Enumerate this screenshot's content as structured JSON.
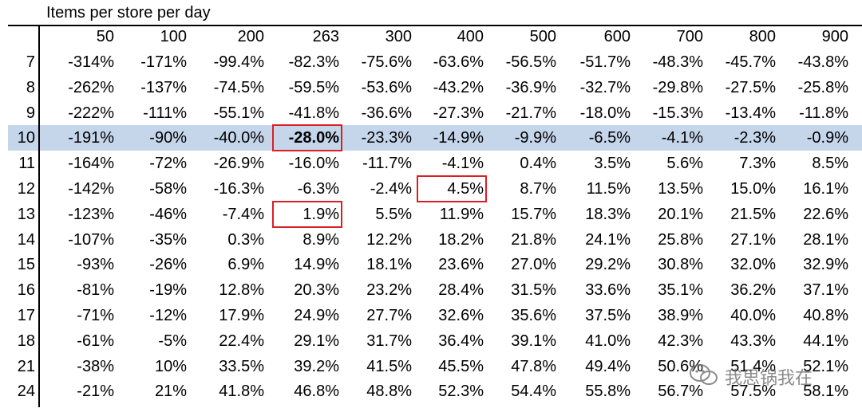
{
  "chart_data": {
    "type": "table",
    "title": "Items per store per day",
    "columns": [
      "50",
      "100",
      "200",
      "263",
      "300",
      "400",
      "500",
      "600",
      "700",
      "800",
      "900"
    ],
    "rows": [
      {
        "label": "7",
        "values": [
          "-314%",
          "-171%",
          "-99.4%",
          "-82.3%",
          "-75.6%",
          "-63.6%",
          "-56.5%",
          "-51.7%",
          "-48.3%",
          "-45.7%",
          "-43.8%"
        ]
      },
      {
        "label": "8",
        "values": [
          "-262%",
          "-137%",
          "-74.5%",
          "-59.5%",
          "-53.6%",
          "-43.2%",
          "-36.9%",
          "-32.7%",
          "-29.8%",
          "-27.5%",
          "-25.8%"
        ]
      },
      {
        "label": "9",
        "values": [
          "-222%",
          "-111%",
          "-55.1%",
          "-41.8%",
          "-36.6%",
          "-27.3%",
          "-21.7%",
          "-18.0%",
          "-15.3%",
          "-13.4%",
          "-11.8%"
        ]
      },
      {
        "label": "10",
        "values": [
          "-191%",
          "-90%",
          "-40.0%",
          "-28.0%",
          "-23.3%",
          "-14.9%",
          "-9.9%",
          "-6.5%",
          "-4.1%",
          "-2.3%",
          "-0.9%"
        ]
      },
      {
        "label": "11",
        "values": [
          "-164%",
          "-72%",
          "-26.9%",
          "-16.0%",
          "-11.7%",
          "-4.1%",
          "0.4%",
          "3.5%",
          "5.6%",
          "7.3%",
          "8.5%"
        ]
      },
      {
        "label": "12",
        "values": [
          "-142%",
          "-58%",
          "-16.3%",
          "-6.3%",
          "-2.4%",
          "4.5%",
          "8.7%",
          "11.5%",
          "13.5%",
          "15.0%",
          "16.1%"
        ]
      },
      {
        "label": "13",
        "values": [
          "-123%",
          "-46%",
          "-7.4%",
          "1.9%",
          "5.5%",
          "11.9%",
          "15.7%",
          "18.3%",
          "20.1%",
          "21.5%",
          "22.6%"
        ]
      },
      {
        "label": "14",
        "values": [
          "-107%",
          "-35%",
          "0.3%",
          "8.9%",
          "12.2%",
          "18.2%",
          "21.8%",
          "24.1%",
          "25.8%",
          "27.1%",
          "28.1%"
        ]
      },
      {
        "label": "15",
        "values": [
          "-93%",
          "-26%",
          "6.9%",
          "14.9%",
          "18.1%",
          "23.6%",
          "27.0%",
          "29.2%",
          "30.8%",
          "32.0%",
          "32.9%"
        ]
      },
      {
        "label": "16",
        "values": [
          "-81%",
          "-19%",
          "12.8%",
          "20.3%",
          "23.2%",
          "28.4%",
          "31.5%",
          "33.6%",
          "35.1%",
          "36.2%",
          "37.1%"
        ]
      },
      {
        "label": "17",
        "values": [
          "-71%",
          "-12%",
          "17.9%",
          "24.9%",
          "27.7%",
          "32.6%",
          "35.6%",
          "37.5%",
          "38.9%",
          "40.0%",
          "40.8%"
        ]
      },
      {
        "label": "18",
        "values": [
          "-61%",
          "-5%",
          "22.4%",
          "29.1%",
          "31.7%",
          "36.4%",
          "39.1%",
          "41.0%",
          "42.3%",
          "43.3%",
          "44.1%"
        ]
      },
      {
        "label": "21",
        "values": [
          "-38%",
          "10%",
          "33.5%",
          "39.2%",
          "41.5%",
          "45.5%",
          "47.8%",
          "49.4%",
          "50.6%",
          "51.4%",
          "52.1%"
        ]
      },
      {
        "label": "24",
        "values": [
          "-21%",
          "21%",
          "41.8%",
          "46.8%",
          "48.8%",
          "52.3%",
          "54.4%",
          "55.8%",
          "56.7%",
          "57.5%",
          "58.1%"
        ]
      }
    ],
    "highlighted_row": "10",
    "boxed_cells": [
      {
        "row": "10",
        "column": "263"
      },
      {
        "row": "12",
        "column": "400"
      },
      {
        "row": "13",
        "column": "263"
      }
    ],
    "bold_cells": [
      {
        "row": "10",
        "column": "263"
      }
    ],
    "colors": {
      "highlight_row": "#c5d5ea",
      "box_border": "#d91f26",
      "text": "#000000"
    }
  },
  "watermark": {
    "text": "我思锅我在",
    "icon": "wechat-logo-icon"
  }
}
